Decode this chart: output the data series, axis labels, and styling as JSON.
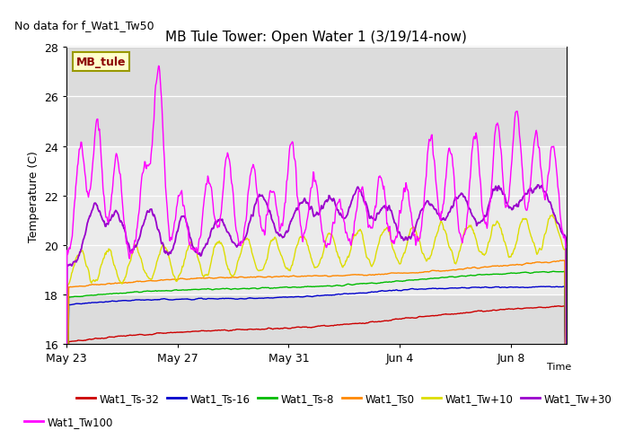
{
  "title": "MB Tule Tower: Open Water 1 (3/19/14-now)",
  "subtitle": "No data for f_Wat1_Tw50",
  "ylabel": "Temperature (C)",
  "xlabel": "Time",
  "annotation": "MB_tule",
  "ylim": [
    16,
    28
  ],
  "yticks": [
    16,
    18,
    20,
    22,
    24,
    26,
    28
  ],
  "bg_outer": "#dcdcdc",
  "bg_band_light": "#ebebeb",
  "n_days": 18,
  "x_tick_labels": [
    "May 23",
    "May 27",
    "May 31",
    "Jun 4",
    "Jun 8"
  ],
  "x_tick_positions": [
    0,
    4,
    8,
    12,
    16
  ],
  "series_colors": {
    "Wat1_Ts-32": "#cc0000",
    "Wat1_Ts-16": "#0000cc",
    "Wat1_Ts-8": "#00bb00",
    "Wat1_Ts0": "#ff8800",
    "Wat1_Tw+10": "#dddd00",
    "Wat1_Tw+30": "#9900cc",
    "Wat1_Tw100": "#ff00ff"
  },
  "legend_labels": [
    "Wat1_Ts-32",
    "Wat1_Ts-16",
    "Wat1_Ts-8",
    "Wat1_Ts0",
    "Wat1_Tw+10",
    "Wat1_Tw+30",
    "Wat1_Tw100"
  ]
}
